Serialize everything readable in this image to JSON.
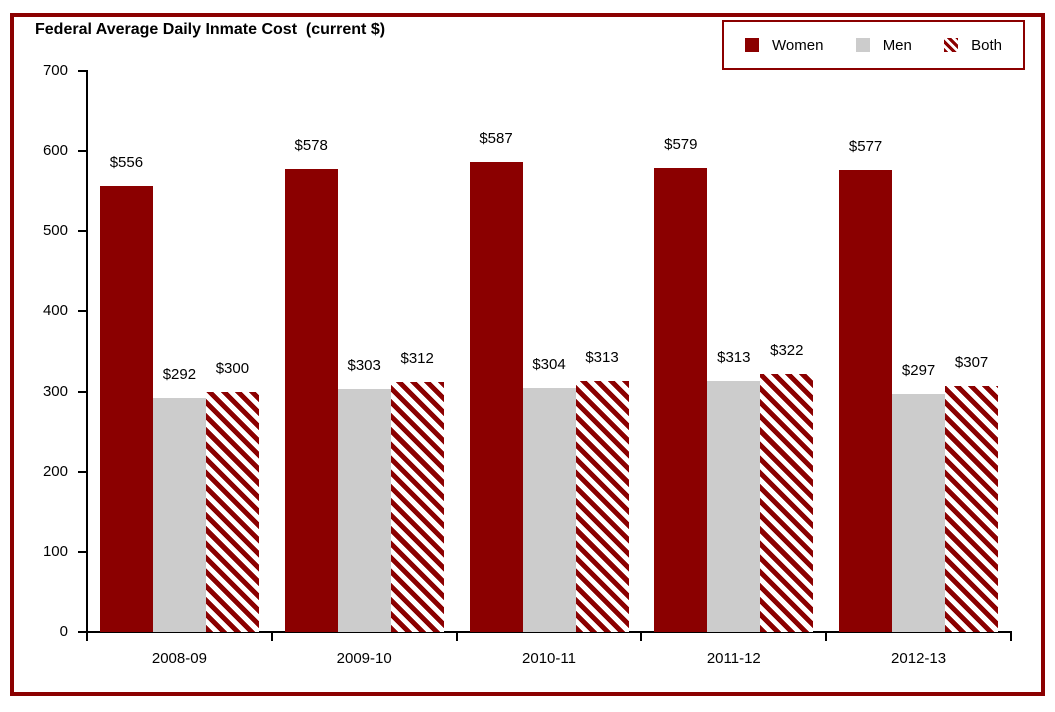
{
  "chart_data": {
    "type": "bar",
    "title": "Federal Average Daily Inmate Cost  (current $)",
    "categories": [
      "2008-09",
      "2009-10",
      "2010-11",
      "2011-12",
      "2012-13"
    ],
    "series": [
      {
        "name": "Women",
        "color": "#8B0000",
        "pattern": "solid",
        "values": [
          556,
          578,
          587,
          579,
          577
        ]
      },
      {
        "name": "Men",
        "color": "#CCCCCC",
        "pattern": "solid",
        "values": [
          292,
          303,
          304,
          313,
          297
        ]
      },
      {
        "name": "Both",
        "color": "#8B0000",
        "pattern": "diagonal-stripes",
        "values": [
          300,
          312,
          313,
          322,
          307
        ]
      }
    ],
    "data_labels": [
      [
        "$556",
        "$292",
        "$300"
      ],
      [
        "$578",
        "$303",
        "$312"
      ],
      [
        "$587",
        "$304",
        "$313"
      ],
      [
        "$579",
        "$313",
        "$322"
      ],
      [
        "$577",
        "$297",
        "$307"
      ]
    ],
    "xlabel": "",
    "ylabel": "",
    "ylim": [
      0,
      700
    ],
    "yticks": [
      0,
      100,
      200,
      300,
      400,
      500,
      600,
      700
    ],
    "grid": false,
    "legend_position": "top-right"
  },
  "colors": {
    "accent_dark_red": "#8B0000",
    "men_gray": "#CCCCCC",
    "stripe_background": "#FFFFFF",
    "frame_border": "#8B0000",
    "axis": "#000000",
    "background": "#FFFFFF"
  }
}
